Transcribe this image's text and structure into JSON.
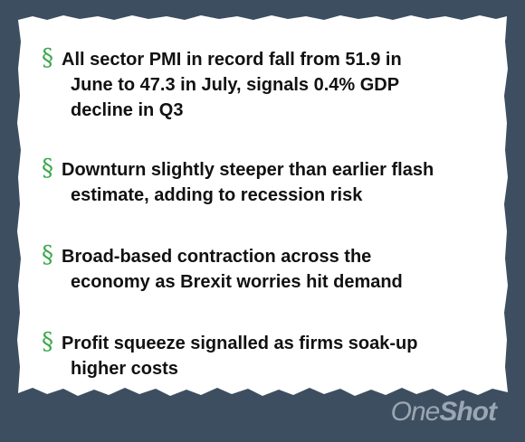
{
  "bullets": [
    {
      "marker": "§",
      "line1": "All sector PMI in record fall from 51.9 in",
      "rest": [
        "June to 47.3 in July, signals 0.4% GDP",
        "decline in Q3"
      ]
    },
    {
      "marker": "§",
      "line1": "Downturn slightly steeper than earlier flash",
      "rest": [
        "estimate, adding to recession risk"
      ]
    },
    {
      "marker": "§",
      "line1": "Broad-based contraction across the",
      "rest": [
        "economy as Brexit worries hit demand"
      ]
    },
    {
      "marker": "§",
      "line1": "Profit squeeze signalled as firms soak-up",
      "rest": [
        "higher costs"
      ]
    }
  ],
  "brand": {
    "part1": "One",
    "part2": "Shot"
  },
  "colors": {
    "background": "#3d4e60",
    "paper": "#ffffff",
    "marker": "#3aa84a",
    "text": "#111111",
    "brand": "#9aa6b2"
  }
}
